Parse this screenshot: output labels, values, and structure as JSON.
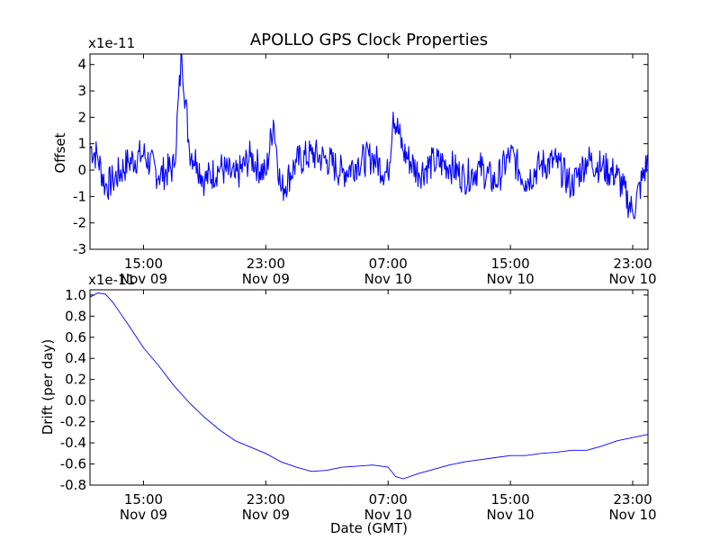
{
  "chart_data": [
    {
      "type": "line",
      "title": "APOLLO GPS Clock Properties",
      "ylabel": "Offset",
      "xlabel": "",
      "y_multiplier": "x1e-11",
      "ylim": [
        -3,
        4.4
      ],
      "xlim": [
        "Nov 09 11:30",
        "Nov 10 24:00"
      ],
      "y_ticks": [
        "-3",
        "-2",
        "-1",
        "0",
        "1",
        "2",
        "3",
        "4"
      ],
      "x_ticks": [
        {
          "time": "15:00",
          "date": "Nov 09"
        },
        {
          "time": "23:00",
          "date": "Nov 09"
        },
        {
          "time": "07:00",
          "date": "Nov 10"
        },
        {
          "time": "15:00",
          "date": "Nov 10"
        },
        {
          "time": "23:00",
          "date": "Nov 10"
        }
      ],
      "color": "#0000ff",
      "series": [
        {
          "x": [
            "Nov 09 11:30",
            "Nov 09 12:00",
            "Nov 09 12:30",
            "Nov 09 13:00",
            "Nov 09 14:00",
            "Nov 09 15:00",
            "Nov 09 16:00",
            "Nov 09 17:00",
            "Nov 09 17:30",
            "Nov 09 18:00",
            "Nov 09 18:30",
            "Nov 09 19:00",
            "Nov 09 20:00",
            "Nov 09 21:00",
            "Nov 09 22:00",
            "Nov 09 23:00",
            "Nov 09 23:30",
            "Nov 10 00:00",
            "Nov 10 01:00",
            "Nov 10 02:00",
            "Nov 10 03:00",
            "Nov 10 04:00",
            "Nov 10 05:00",
            "Nov 10 06:00",
            "Nov 10 07:00",
            "Nov 10 07:20",
            "Nov 10 08:00",
            "Nov 10 09:00",
            "Nov 10 10:00",
            "Nov 10 11:00",
            "Nov 10 12:00",
            "Nov 10 13:00",
            "Nov 10 14:00",
            "Nov 10 15:00",
            "Nov 10 16:00",
            "Nov 10 17:00",
            "Nov 10 18:00",
            "Nov 10 19:00",
            "Nov 10 20:00",
            "Nov 10 21:00",
            "Nov 10 22:00",
            "Nov 10 23:00",
            "Nov 10 24:00"
          ],
          "values": [
            0.9,
            0.5,
            -0.6,
            -0.4,
            0.3,
            0.6,
            -0.2,
            0.1,
            4.4,
            0.8,
            0.3,
            -0.4,
            0.1,
            -0.3,
            0.5,
            -0.2,
            1.9,
            -0.8,
            0.3,
            0.6,
            0.4,
            -0.1,
            0.3,
            0.5,
            -0.2,
            2.2,
            0.7,
            -0.1,
            0.3,
            0.2,
            -0.3,
            0.1,
            -0.5,
            0.6,
            -0.4,
            0.2,
            0.3,
            -0.6,
            0.4,
            0.1,
            -0.2,
            -1.6,
            0.4
          ]
        }
      ]
    },
    {
      "type": "line",
      "title": "",
      "ylabel": "Drift (per day)",
      "xlabel": "Date (GMT)",
      "y_multiplier": "x1e-11",
      "ylim": [
        -0.8,
        1.05
      ],
      "xlim": [
        "Nov 09 11:30",
        "Nov 10 24:00"
      ],
      "y_ticks": [
        "-0.8",
        "-0.6",
        "-0.4",
        "-0.2",
        "0.0",
        "0.2",
        "0.4",
        "0.6",
        "0.8",
        "1.0"
      ],
      "x_ticks": [
        {
          "time": "15:00",
          "date": "Nov 09"
        },
        {
          "time": "23:00",
          "date": "Nov 09"
        },
        {
          "time": "07:00",
          "date": "Nov 10"
        },
        {
          "time": "15:00",
          "date": "Nov 10"
        },
        {
          "time": "23:00",
          "date": "Nov 10"
        }
      ],
      "color": "#0000ff",
      "series": [
        {
          "x": [
            "Nov 09 11:30",
            "Nov 09 12:00",
            "Nov 09 12:30",
            "Nov 09 13:00",
            "Nov 09 14:00",
            "Nov 09 15:00",
            "Nov 09 16:00",
            "Nov 09 17:00",
            "Nov 09 18:00",
            "Nov 09 19:00",
            "Nov 09 20:00",
            "Nov 09 21:00",
            "Nov 09 22:00",
            "Nov 09 23:00",
            "Nov 10 00:00",
            "Nov 10 01:00",
            "Nov 10 02:00",
            "Nov 10 03:00",
            "Nov 10 04:00",
            "Nov 10 05:00",
            "Nov 10 06:00",
            "Nov 10 07:00",
            "Nov 10 07:30",
            "Nov 10 08:00",
            "Nov 10 09:00",
            "Nov 10 10:00",
            "Nov 10 11:00",
            "Nov 10 12:00",
            "Nov 10 13:00",
            "Nov 10 14:00",
            "Nov 10 15:00",
            "Nov 10 16:00",
            "Nov 10 17:00",
            "Nov 10 18:00",
            "Nov 10 19:00",
            "Nov 10 20:00",
            "Nov 10 21:00",
            "Nov 10 22:00",
            "Nov 10 23:00",
            "Nov 10 24:00"
          ],
          "values": [
            0.98,
            1.02,
            1.01,
            0.93,
            0.72,
            0.5,
            0.33,
            0.14,
            -0.02,
            -0.16,
            -0.28,
            -0.38,
            -0.44,
            -0.5,
            -0.58,
            -0.63,
            -0.67,
            -0.66,
            -0.63,
            -0.62,
            -0.61,
            -0.63,
            -0.72,
            -0.74,
            -0.69,
            -0.65,
            -0.61,
            -0.58,
            -0.56,
            -0.54,
            -0.52,
            -0.52,
            -0.5,
            -0.49,
            -0.47,
            -0.47,
            -0.43,
            -0.38,
            -0.35,
            -0.32
          ]
        }
      ]
    }
  ]
}
